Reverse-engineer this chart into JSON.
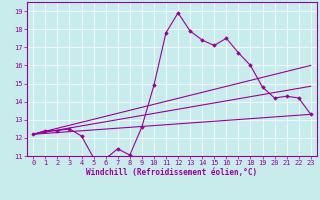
{
  "xlabel": "Windchill (Refroidissement éolien,°C)",
  "background_color": "#c8ecec",
  "line_color": "#990099",
  "xlim": [
    -0.5,
    23.5
  ],
  "ylim": [
    11,
    19.5
  ],
  "yticks": [
    11,
    12,
    13,
    14,
    15,
    16,
    17,
    18,
    19
  ],
  "xticks": [
    0,
    1,
    2,
    3,
    4,
    5,
    6,
    7,
    8,
    9,
    10,
    11,
    12,
    13,
    14,
    15,
    16,
    17,
    18,
    19,
    20,
    21,
    22,
    23
  ],
  "series1_x": [
    0,
    1,
    2,
    3,
    4,
    5,
    6,
    7,
    8,
    9,
    10,
    11,
    12,
    13,
    14,
    15,
    16,
    17,
    18,
    19,
    20,
    21,
    22,
    23
  ],
  "series1_y": [
    12.2,
    12.4,
    12.4,
    12.5,
    12.1,
    10.9,
    10.85,
    11.4,
    11.05,
    12.6,
    14.9,
    17.8,
    18.9,
    17.9,
    17.4,
    17.1,
    17.5,
    16.7,
    16.0,
    14.8,
    14.2,
    14.3,
    14.2,
    13.3
  ],
  "series2_x": [
    0,
    23
  ],
  "series2_y": [
    12.2,
    16.0
  ],
  "series3_x": [
    0,
    23
  ],
  "series3_y": [
    12.2,
    13.3
  ],
  "series4_x": [
    0,
    23
  ],
  "series4_y": [
    12.2,
    14.85
  ]
}
